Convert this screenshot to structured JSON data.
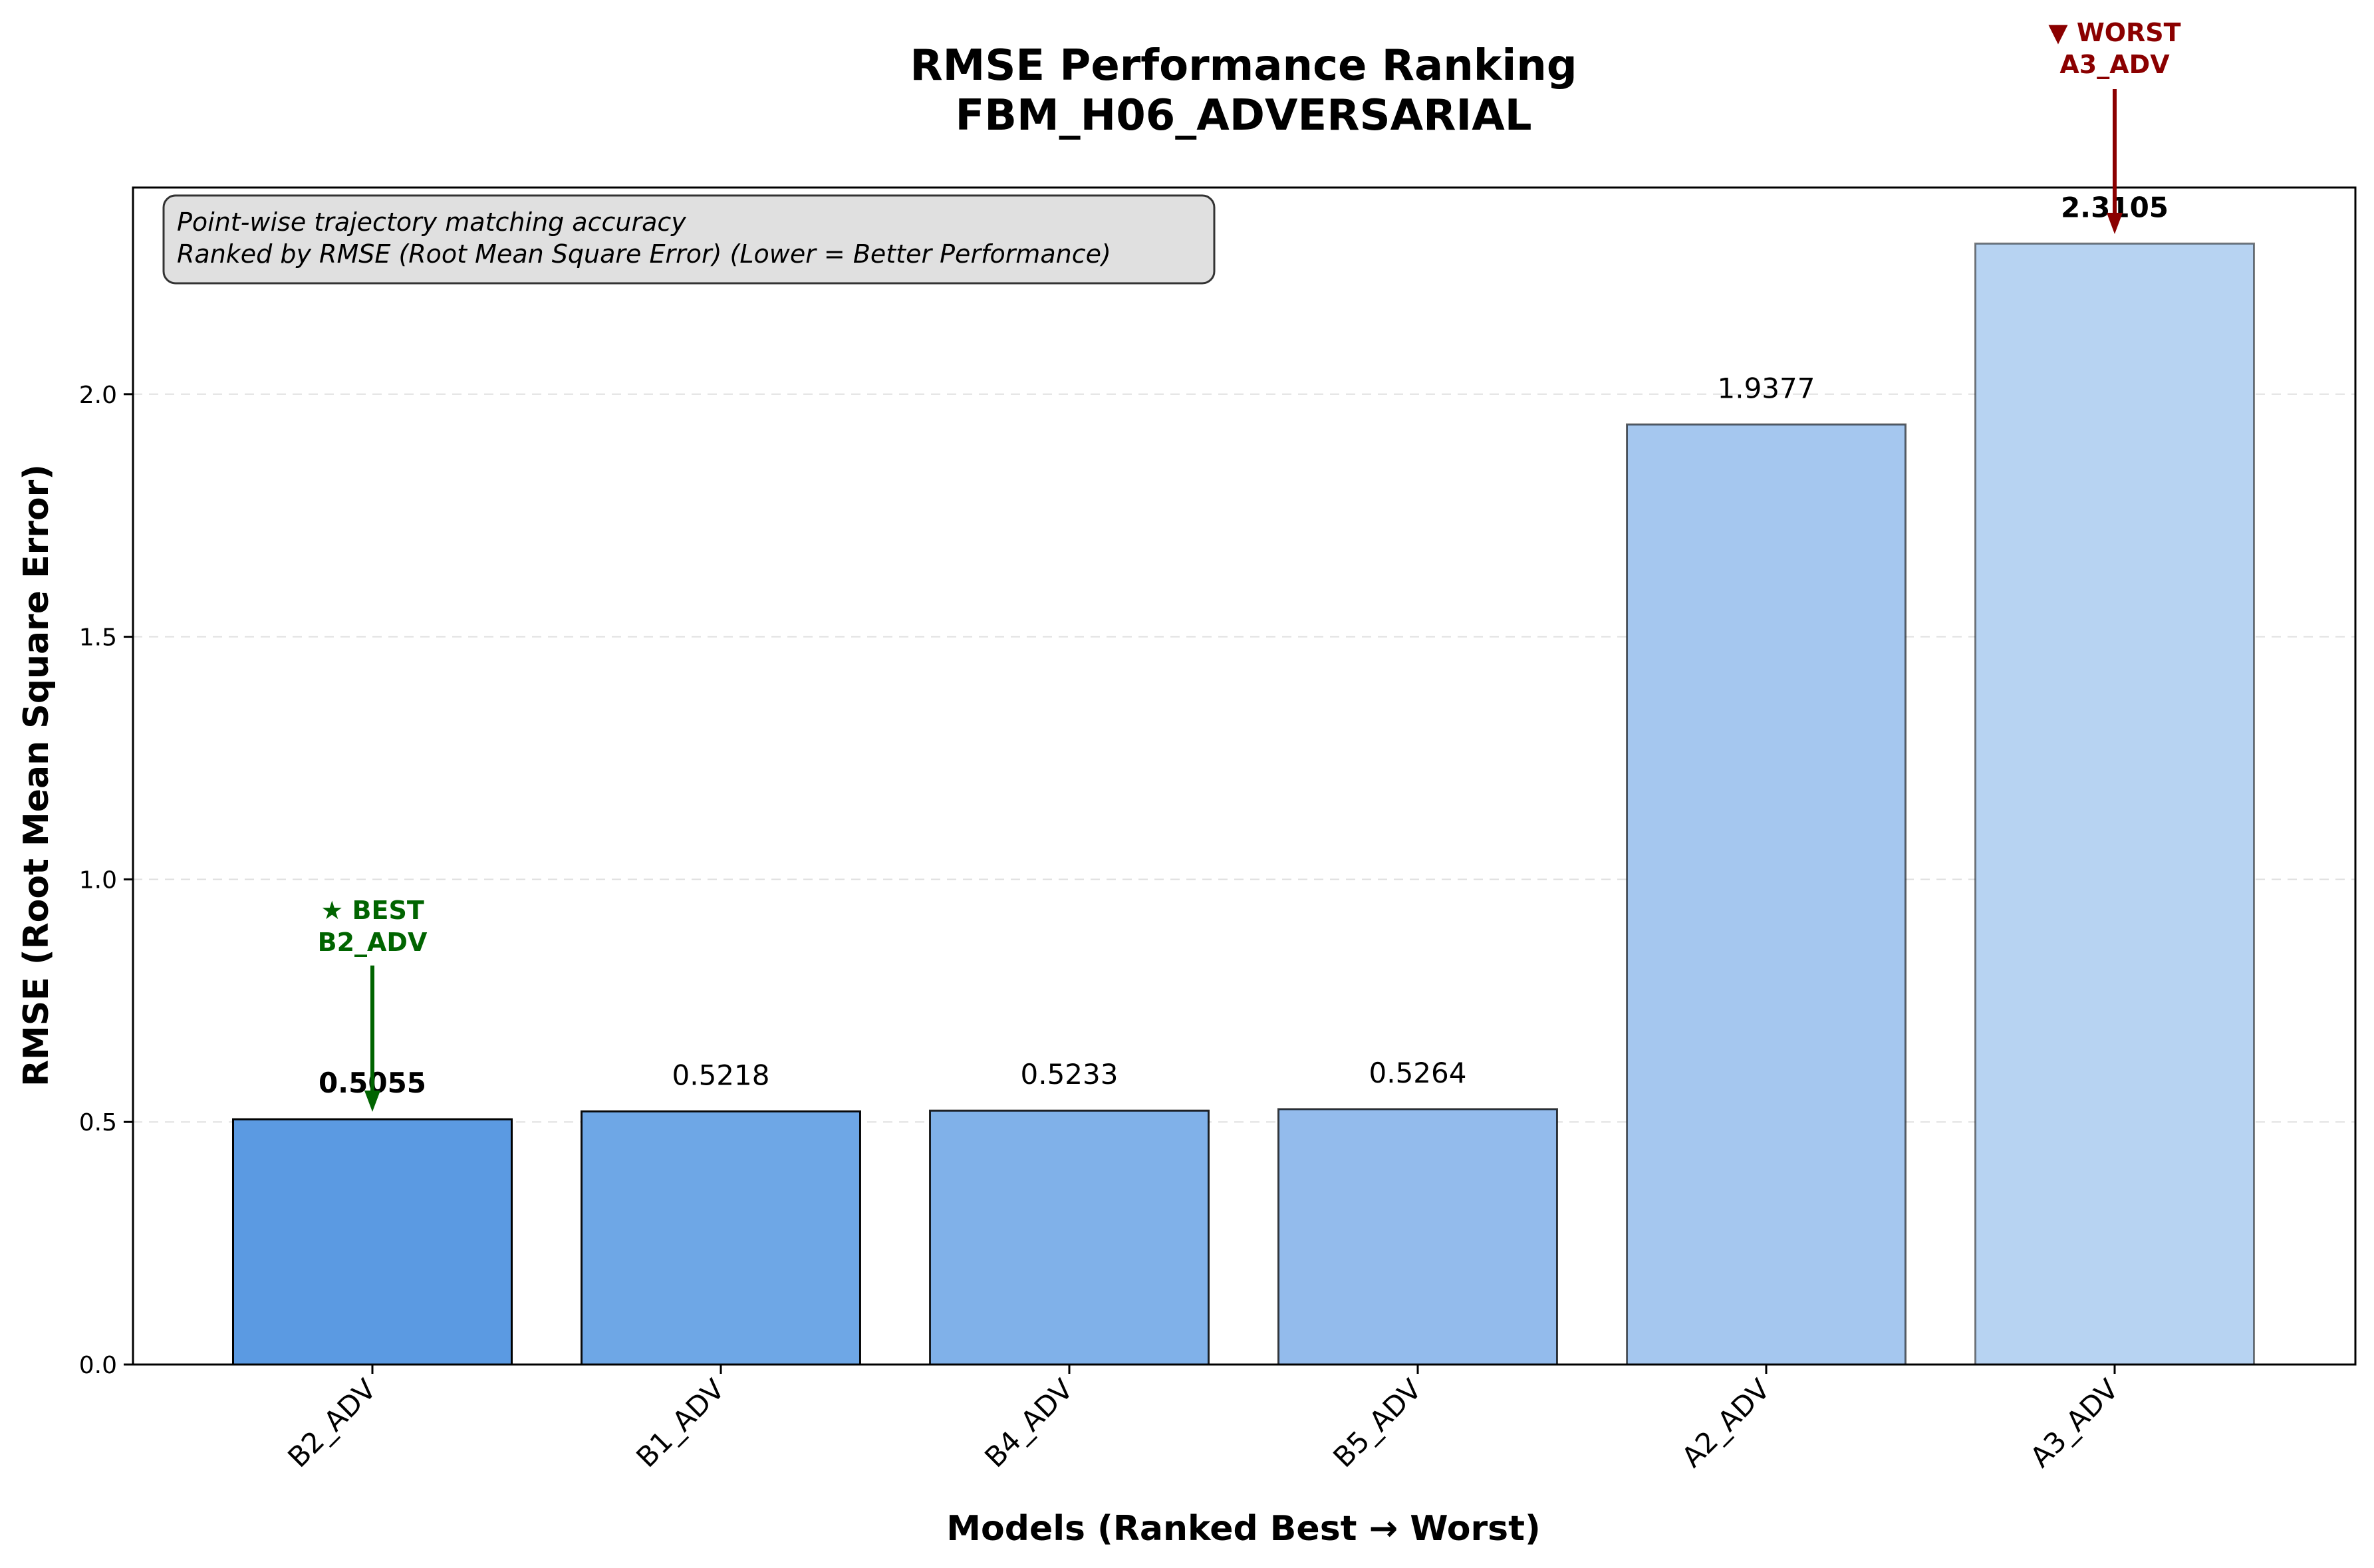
{
  "chart_data": {
    "type": "bar",
    "title": "RMSE Performance Ranking",
    "subtitle": "FBM_H06_ADVERSARIAL",
    "xlabel": "Models (Ranked Best → Worst)",
    "ylabel": "RMSE (Root Mean Square Error)",
    "categories": [
      "B2_ADV",
      "B1_ADV",
      "B4_ADV",
      "B5_ADV",
      "A2_ADV",
      "A3_ADV"
    ],
    "values": [
      0.5055,
      0.5218,
      0.5233,
      0.5264,
      1.9377,
      2.3105
    ],
    "value_labels": [
      "0.5055",
      "0.5218",
      "0.5233",
      "0.5264",
      "1.9377",
      "2.3105"
    ],
    "bar_colors": [
      "#5b9ae2",
      "#6ea7e6",
      "#80b1e9",
      "#93bbec",
      "#a5c7ef",
      "#b7d3f2"
    ],
    "ylim": [
      0,
      2.426
    ],
    "yticks": [
      0.0,
      0.5,
      1.0,
      1.5,
      2.0
    ],
    "ytick_labels": [
      "0.0",
      "0.5",
      "1.0",
      "1.5",
      "2.0"
    ],
    "grid": "horizontal dashed",
    "info_box": {
      "line1": "Point-wise trajectory matching accuracy",
      "line2": "Ranked by RMSE (Root Mean Square Error) (Lower = Better Performance)"
    },
    "best_annotation": {
      "line1": "★ BEST",
      "line2": "B2_ADV",
      "color": "#006400"
    },
    "worst_annotation": {
      "line1": "▼ WORST",
      "line2": "A3_ADV",
      "color": "#8b0000"
    }
  }
}
